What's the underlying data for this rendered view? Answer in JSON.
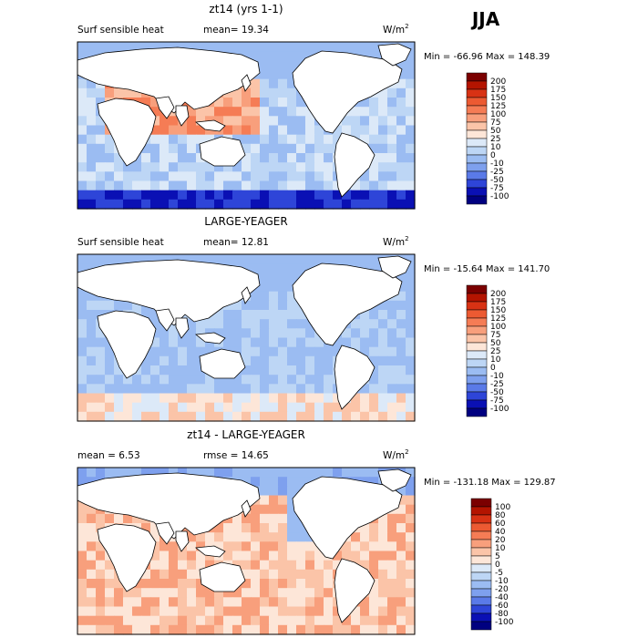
{
  "season": "JJA",
  "panels": [
    {
      "title": "zt14 (yrs 1-1)",
      "left_label": "Surf sensible heat",
      "mid_label": "mean=  19.34",
      "units": "W/m",
      "units_sup": "2",
      "minmax": "Min = -66.96 Max = 148.39",
      "colorbar_labels": [
        "200",
        "175",
        "150",
        "125",
        "100",
        "75",
        "50",
        "25",
        "10",
        "0",
        "-10",
        "-25",
        "-50",
        "-75",
        "-100"
      ]
    },
    {
      "title": "LARGE-YEAGER",
      "left_label": "Surf sensible heat",
      "mid_label": "mean=  12.81",
      "units": "W/m",
      "units_sup": "2",
      "minmax": "Min = -15.64 Max = 141.70",
      "colorbar_labels": [
        "200",
        "175",
        "150",
        "125",
        "100",
        "75",
        "50",
        "25",
        "10",
        "0",
        "-10",
        "-25",
        "-50",
        "-75",
        "-100"
      ]
    },
    {
      "title": "zt14 - LARGE-YEAGER",
      "left_label": "mean =   6.53",
      "mid_label": "rmse =  14.65",
      "units": "W/m",
      "units_sup": "2",
      "minmax": "Min = -131.18 Max = 129.87",
      "colorbar_labels": [
        "100",
        "80",
        "60",
        "40",
        "20",
        "10",
        "5",
        "0",
        "-5",
        "-10",
        "-20",
        "-40",
        "-60",
        "-80",
        "-100"
      ]
    }
  ],
  "colors": {
    "model_scale": [
      "#7b0000",
      "#b41400",
      "#d83214",
      "#ec5a32",
      "#f57c55",
      "#f89f7c",
      "#fbc4a8",
      "#fde6d8",
      "#dce9f8",
      "#bdd6f5",
      "#9bbcf2",
      "#7ea0ee",
      "#5a7ae8",
      "#2e45d8",
      "#0a10b4",
      "#000080"
    ],
    "diff_scale": [
      "#7b0000",
      "#b41400",
      "#d83214",
      "#ec5a32",
      "#f57c55",
      "#f89f7c",
      "#fbc4a8",
      "#fde6d8",
      "#dce9f8",
      "#bdd6f5",
      "#9bbcf2",
      "#7ea0ee",
      "#5a7ae8",
      "#2e45d8",
      "#0a10b4",
      "#000080"
    ],
    "land": "#ffffff",
    "coast": "#000000"
  },
  "chart_data": [
    {
      "type": "heatmap",
      "title": "zt14 (yrs 1-1)",
      "variable": "Surf sensible heat",
      "units": "W/m2",
      "mean": 19.34,
      "min": -66.96,
      "max": 148.39,
      "levels": [
        -100,
        -75,
        -50,
        -25,
        -10,
        0,
        10,
        25,
        50,
        75,
        100,
        125,
        150,
        175,
        200
      ]
    },
    {
      "type": "heatmap",
      "title": "LARGE-YEAGER",
      "variable": "Surf sensible heat",
      "units": "W/m2",
      "mean": 12.81,
      "min": -15.64,
      "max": 141.7,
      "levels": [
        -100,
        -75,
        -50,
        -25,
        -10,
        0,
        10,
        25,
        50,
        75,
        100,
        125,
        150,
        175,
        200
      ]
    },
    {
      "type": "heatmap",
      "title": "zt14 - LARGE-YEAGER",
      "units": "W/m2",
      "mean": 6.53,
      "rmse": 14.65,
      "min": -131.18,
      "max": 129.87,
      "levels": [
        -100,
        -80,
        -60,
        -40,
        -20,
        -10,
        -5,
        0,
        5,
        10,
        20,
        40,
        60,
        80,
        100
      ]
    }
  ]
}
